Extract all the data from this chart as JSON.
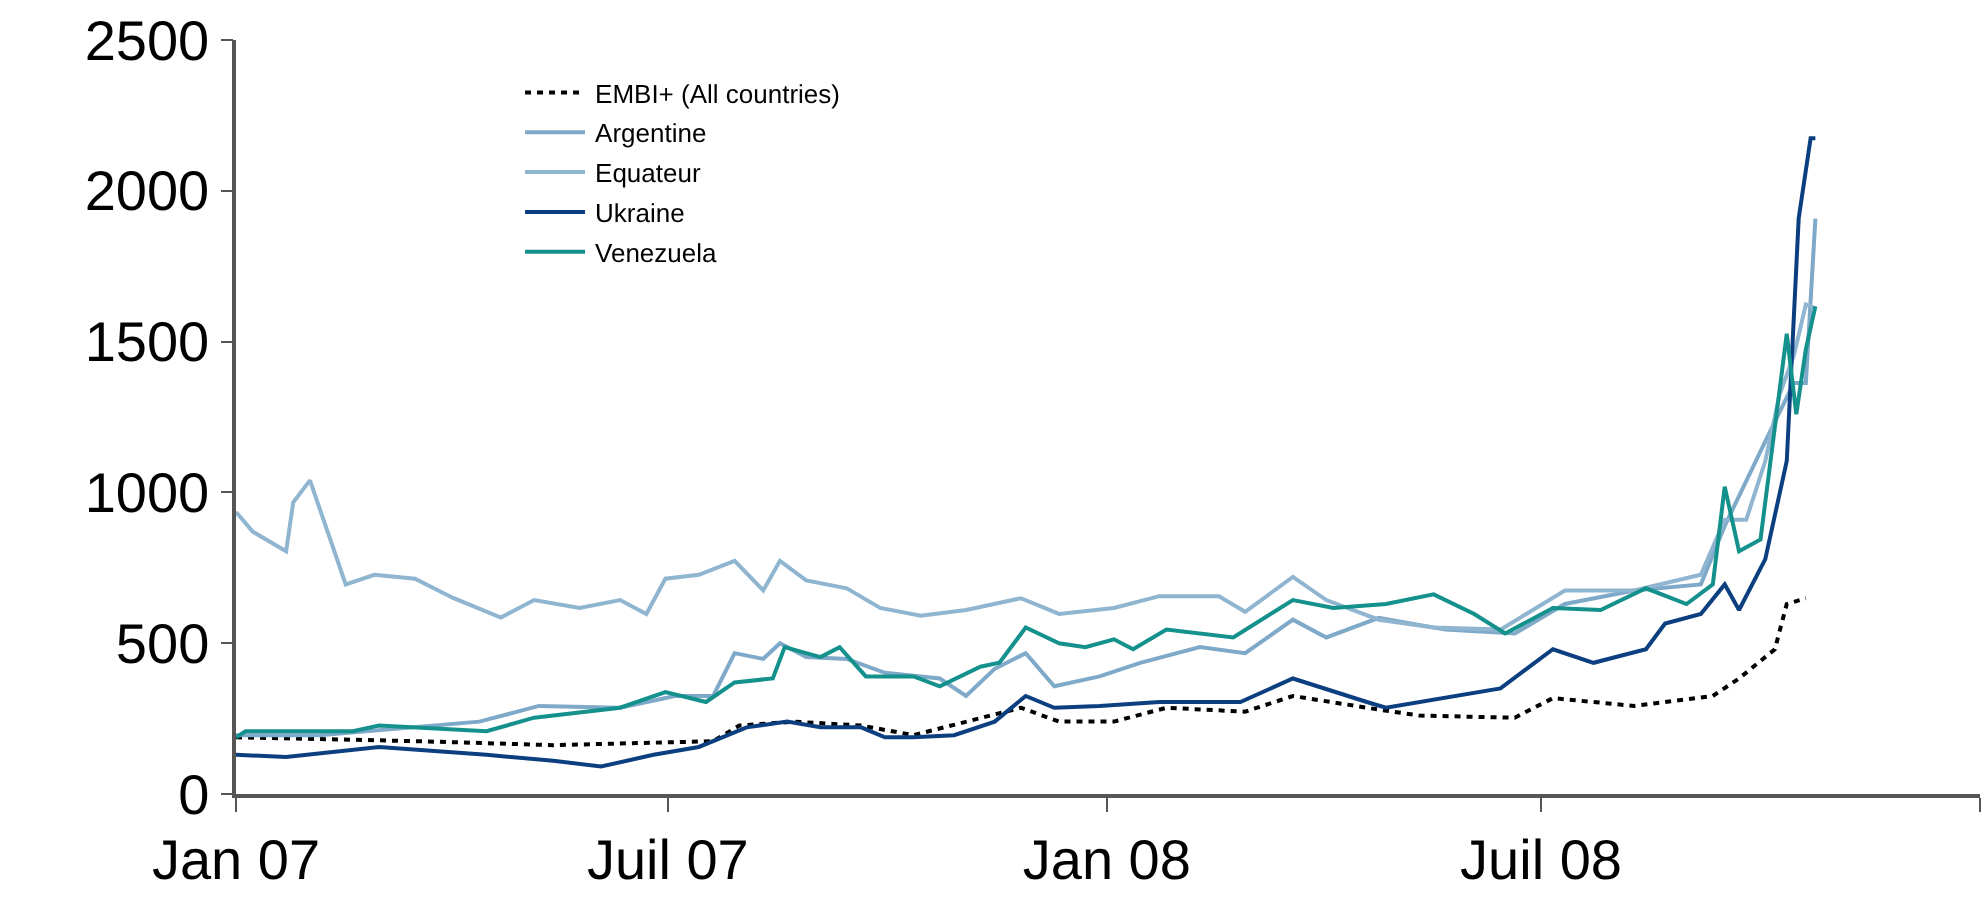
{
  "chart_data": {
    "type": "line",
    "xlim": [
      "2007-01-01",
      "2009-01-01"
    ],
    "xticks": [
      {
        "value": "2007-01-01",
        "label": "Jan 07"
      },
      {
        "value": "2007-07-01",
        "label": "Juil 07"
      },
      {
        "value": "2008-01-01",
        "label": "Jan 08"
      },
      {
        "value": "2008-07-01",
        "label": "Juil 08"
      },
      {
        "value": "2009-01-01",
        "label": null
      }
    ],
    "ylim": [
      0,
      2500
    ],
    "yticks": [
      0,
      500,
      1000,
      1500,
      2000,
      2500
    ],
    "legend": "top left",
    "marker": "none",
    "series": [
      {
        "name": "EMBI+ (All countries)",
        "color": "#000000",
        "line_style": "dotted",
        "x": [
          "2007-01-01",
          "2007-03-19",
          "2007-05-14",
          "2007-07-20",
          "2007-07-31",
          "2007-08-23",
          "2007-09-20",
          "2007-10-12",
          "2007-11-26",
          "2007-12-12",
          "2008-01-04",
          "2008-01-26",
          "2008-02-28",
          "2008-03-19",
          "2008-04-19",
          "2008-05-11",
          "2008-06-20",
          "2008-07-06",
          "2008-08-09",
          "2008-09-11",
          "2008-09-22",
          "2008-10-07",
          "2008-10-12",
          "2008-10-20"
        ],
        "values": [
          188,
          175,
          162,
          175,
          227,
          240,
          227,
          195,
          286,
          240,
          240,
          286,
          273,
          325,
          286,
          260,
          253,
          318,
          292,
          325,
          383,
          480,
          630,
          649
        ]
      },
      {
        "name": "Argentine",
        "color": "#7fa9c9",
        "line_style": "solid",
        "x": [
          "2007-01-01",
          "2007-02-05",
          "2007-04-13",
          "2007-05-08",
          "2007-06-11",
          "2007-07-04",
          "2007-07-20",
          "2007-07-29",
          "2007-08-10",
          "2007-08-17",
          "2007-08-28",
          "2007-09-14",
          "2007-09-30",
          "2007-10-23",
          "2007-11-03",
          "2007-11-15",
          "2007-11-28",
          "2007-12-10",
          "2007-12-29",
          "2008-01-15",
          "2008-02-09",
          "2008-02-28",
          "2008-03-19",
          "2008-04-02",
          "2008-04-24",
          "2008-05-22",
          "2008-06-20",
          "2008-07-11",
          "2008-08-09",
          "2008-09-06",
          "2008-09-16",
          "2008-10-03",
          "2008-10-15",
          "2008-10-20",
          "2008-10-24"
        ],
        "values": [
          195,
          195,
          240,
          292,
          286,
          325,
          325,
          467,
          448,
          500,
          454,
          448,
          402,
          383,
          325,
          415,
          467,
          357,
          390,
          435,
          487,
          467,
          578,
          519,
          584,
          545,
          532,
          630,
          675,
          695,
          889,
          1169,
          1363,
          1363,
          1908
        ]
      },
      {
        "name": "Equateur",
        "color": "#8fb5d0",
        "line_style": "solid",
        "x": [
          "2007-01-01",
          "2007-01-08",
          "2007-01-22",
          "2007-01-25",
          "2007-02-01",
          "2007-02-16",
          "2007-02-28",
          "2007-03-17",
          "2007-04-02",
          "2007-04-22",
          "2007-05-06",
          "2007-05-25",
          "2007-06-11",
          "2007-06-22",
          "2007-06-30",
          "2007-07-14",
          "2007-07-29",
          "2007-08-10",
          "2007-08-17",
          "2007-08-28",
          "2007-09-14",
          "2007-09-28",
          "2007-10-15",
          "2007-11-03",
          "2007-11-26",
          "2007-12-12",
          "2008-01-04",
          "2008-01-23",
          "2008-02-17",
          "2008-02-28",
          "2008-03-19",
          "2008-04-02",
          "2008-04-24",
          "2008-05-17",
          "2008-06-14",
          "2008-07-11",
          "2008-08-09",
          "2008-09-06",
          "2008-09-16",
          "2008-09-25",
          "2008-10-03",
          "2008-10-09",
          "2008-10-15",
          "2008-10-20",
          "2008-10-24"
        ],
        "values": [
          935,
          870,
          805,
          967,
          1040,
          695,
          727,
          714,
          650,
          585,
          643,
          617,
          643,
          597,
          714,
          727,
          773,
          675,
          773,
          708,
          682,
          617,
          591,
          610,
          649,
          597,
          617,
          656,
          656,
          604,
          720,
          643,
          578,
          552,
          545,
          675,
          675,
          727,
          909,
          909,
          1104,
          1324,
          1454,
          1623,
          1610
        ]
      },
      {
        "name": "Ukraine",
        "color": "#0b3f80",
        "line_style": "solid",
        "x": [
          "2007-01-01",
          "2007-01-22",
          "2007-03-02",
          "2007-04-16",
          "2007-05-14",
          "2007-06-03",
          "2007-06-25",
          "2007-07-14",
          "2007-08-03",
          "2007-08-20",
          "2007-09-03",
          "2007-09-20",
          "2007-09-30",
          "2007-10-12",
          "2007-10-29",
          "2007-11-15",
          "2007-11-28",
          "2007-12-10",
          "2007-12-29",
          "2008-01-23",
          "2008-02-26",
          "2008-03-19",
          "2008-04-19",
          "2008-04-27",
          "2008-06-14",
          "2008-07-06",
          "2008-07-23",
          "2008-08-14",
          "2008-08-22",
          "2008-09-06",
          "2008-09-16",
          "2008-09-22",
          "2008-10-03",
          "2008-10-12",
          "2008-10-17",
          "2008-10-22",
          "2008-10-24"
        ],
        "values": [
          130,
          123,
          156,
          130,
          110,
          91,
          130,
          156,
          221,
          240,
          221,
          221,
          188,
          188,
          195,
          240,
          325,
          286,
          292,
          305,
          305,
          383,
          305,
          286,
          350,
          480,
          435,
          480,
          565,
          597,
          695,
          610,
          779,
          1104,
          1908,
          2174,
          2174
        ]
      },
      {
        "name": "Venezuela",
        "color": "#14918c",
        "line_style": "solid",
        "x": [
          "2007-01-01",
          "2007-01-05",
          "2007-02-19",
          "2007-03-02",
          "2007-04-16",
          "2007-05-06",
          "2007-06-11",
          "2007-06-30",
          "2007-07-17",
          "2007-07-29",
          "2007-08-14",
          "2007-08-19",
          "2007-09-03",
          "2007-09-11",
          "2007-09-22",
          "2007-10-12",
          "2007-10-23",
          "2007-11-09",
          "2007-11-17",
          "2007-11-28",
          "2007-12-12",
          "2007-12-23",
          "2008-01-04",
          "2008-01-12",
          "2008-01-26",
          "2008-02-23",
          "2008-03-19",
          "2008-04-05",
          "2008-04-27",
          "2008-05-17",
          "2008-06-03",
          "2008-06-16",
          "2008-07-06",
          "2008-07-26",
          "2008-08-14",
          "2008-08-31",
          "2008-09-11",
          "2008-09-16",
          "2008-09-22",
          "2008-10-01",
          "2008-10-12",
          "2008-10-16",
          "2008-10-20",
          "2008-10-24"
        ],
        "values": [
          188,
          208,
          208,
          227,
          208,
          253,
          286,
          338,
          305,
          370,
          383,
          487,
          454,
          487,
          390,
          390,
          357,
          422,
          435,
          552,
          500,
          487,
          513,
          480,
          545,
          519,
          643,
          617,
          630,
          662,
          597,
          532,
          617,
          610,
          682,
          630,
          695,
          1019,
          805,
          844,
          1526,
          1259,
          1474,
          1617
        ]
      }
    ]
  }
}
